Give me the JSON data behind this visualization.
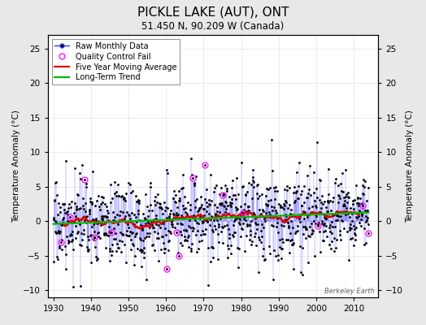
{
  "title": "PICKLE LAKE (AUT), ONT",
  "subtitle": "51.450 N, 90.209 W (Canada)",
  "ylabel": "Temperature Anomaly (°C)",
  "xlim": [
    1928.5,
    2016.5
  ],
  "ylim": [
    -11,
    27
  ],
  "yticks_left": [
    -10,
    -5,
    0,
    5,
    10,
    15,
    20,
    25
  ],
  "yticks_right": [
    -10,
    -5,
    0,
    5,
    10,
    15,
    20,
    25
  ],
  "xticks": [
    1930,
    1940,
    1950,
    1960,
    1970,
    1980,
    1990,
    2000,
    2010
  ],
  "start_year": 1930,
  "end_year": 2014,
  "seed": 17,
  "background_color": "#e8e8e8",
  "plot_bg_color": "#ffffff",
  "line_color": "#3333ff",
  "line_alpha": 0.6,
  "marker_color": "#000000",
  "moving_avg_color": "#dd0000",
  "trend_color": "#00bb00",
  "qc_fail_color": "#ff00ff",
  "legend_loc": "upper left",
  "watermark": "Berkeley Earth",
  "title_fontsize": 11,
  "subtitle_fontsize": 8.5,
  "label_fontsize": 7.5,
  "tick_fontsize": 7.5,
  "legend_fontsize": 7,
  "n_qc_fail": 15
}
